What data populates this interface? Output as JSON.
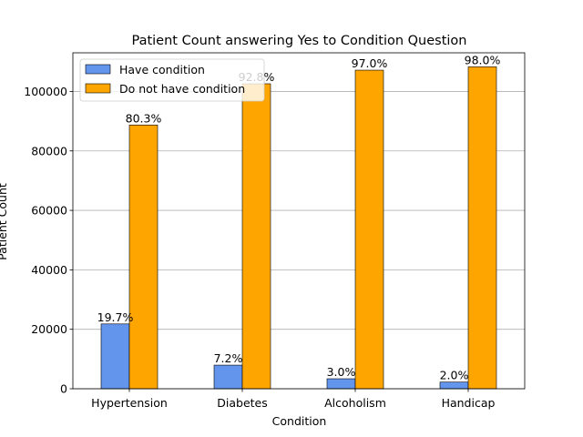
{
  "chart_data": {
    "type": "bar",
    "title": "Patient Count answering Yes to Condition Question",
    "xlabel": "Condition",
    "ylabel": "Patient Count",
    "categories": [
      "Hypertension",
      "Diabetes",
      "Alcoholism",
      "Handicap"
    ],
    "series": [
      {
        "name": "Have condition",
        "color": "#6495ED",
        "values": [
          21801,
          7943,
          3360,
          2241
        ],
        "labels": [
          "19.7%",
          "7.2%",
          "3.0%",
          "2.0%"
        ]
      },
      {
        "name": "Do not have condition",
        "color": "#FFA500",
        "values": [
          88726,
          102584,
          107167,
          108286
        ],
        "labels": [
          "80.3%",
          "92.8%",
          "97.0%",
          "98.0%"
        ]
      }
    ],
    "ylim": [
      0,
      113000
    ],
    "yticks": [
      0,
      20000,
      40000,
      60000,
      80000,
      100000
    ],
    "grid": "y",
    "legend": "upper left"
  }
}
